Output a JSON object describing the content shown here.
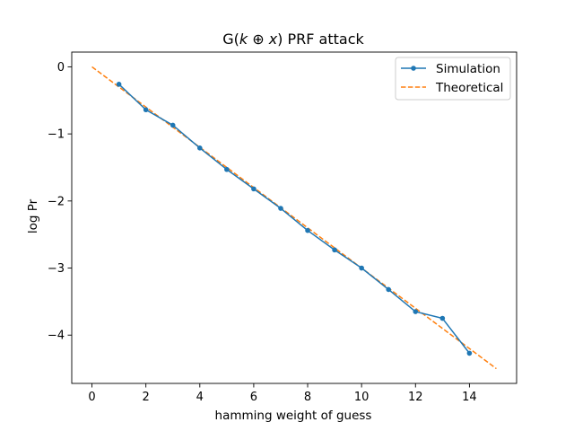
{
  "chart_data": {
    "type": "line",
    "title": {
      "prefix": "G(",
      "k": "k",
      "xor": " ⊕ ",
      "x": "x",
      "suffix": ") PRF attack"
    },
    "xlabel": "hamming weight of guess",
    "ylabel": "log Pr",
    "xlim": [
      -0.75,
      15.75
    ],
    "ylim": [
      -4.72,
      0.22
    ],
    "xticks": [
      0,
      2,
      4,
      6,
      8,
      10,
      12,
      14
    ],
    "yticks": [
      0,
      -1,
      -2,
      -3,
      -4
    ],
    "ytick_labels": [
      "0",
      "−1",
      "−2",
      "−3",
      "−4"
    ],
    "grid": false,
    "legend_position": "top-right",
    "series": [
      {
        "name": "Simulation",
        "color": "#1f77b4",
        "style": "solid",
        "marker": "circle",
        "x": [
          1,
          2,
          3,
          4,
          5,
          6,
          7,
          8,
          9,
          10,
          11,
          12,
          13,
          14
        ],
        "y": [
          -0.26,
          -0.64,
          -0.87,
          -1.21,
          -1.53,
          -1.82,
          -2.11,
          -2.44,
          -2.73,
          -3.0,
          -3.32,
          -3.65,
          -3.75,
          -4.27
        ]
      },
      {
        "name": "Theoretical",
        "color": "#ff7f0e",
        "style": "dashed",
        "marker": "none",
        "x": [
          0,
          15
        ],
        "y": [
          0,
          -4.5
        ]
      }
    ]
  }
}
